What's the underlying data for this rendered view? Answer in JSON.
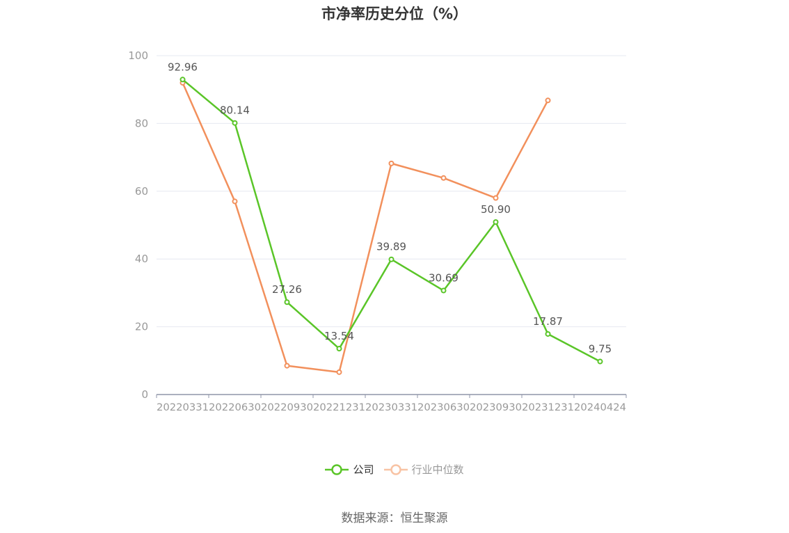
{
  "title": "市净率历史分位（%）",
  "source": "数据来源：恒生聚源",
  "colors": {
    "company": "#5ac528",
    "industry": "#f2905c",
    "grid": "#e6e8f0",
    "axis": "#8f96a8",
    "tick": "#999999",
    "label": "#555555"
  },
  "legend": [
    {
      "name": "公司",
      "icon": "circle-line-icon",
      "color": "#5ac528",
      "active": true
    },
    {
      "name": "行业中位数",
      "icon": "circle-line-icon",
      "color": "#f8c3a4",
      "active": false
    }
  ],
  "chart_data": {
    "type": "line",
    "title": "市净率历史分位（%）",
    "categories": [
      "20220331",
      "20220630",
      "20220930",
      "20221231",
      "20230331",
      "20230630",
      "20230930",
      "20231231",
      "20240424"
    ],
    "ylim": [
      0,
      100
    ],
    "yticks": [
      0,
      20,
      40,
      60,
      80,
      100
    ],
    "grid": true,
    "legend_position": "bottom",
    "series": [
      {
        "name": "公司",
        "color": "#5ac528",
        "labels_shown": true,
        "values": [
          92.96,
          80.14,
          27.26,
          13.54,
          39.89,
          30.69,
          50.9,
          17.87,
          9.75
        ],
        "labels": [
          "92.96",
          "80.14",
          "27.26",
          "13.54",
          "39.89",
          "30.69",
          "50.90",
          "17.87",
          "9.75"
        ]
      },
      {
        "name": "行业中位数",
        "color": "#f2905c",
        "labels_shown": false,
        "values": [
          92.0,
          57.0,
          8.5,
          6.6,
          68.2,
          63.9,
          58.0,
          86.8,
          null
        ]
      }
    ]
  }
}
